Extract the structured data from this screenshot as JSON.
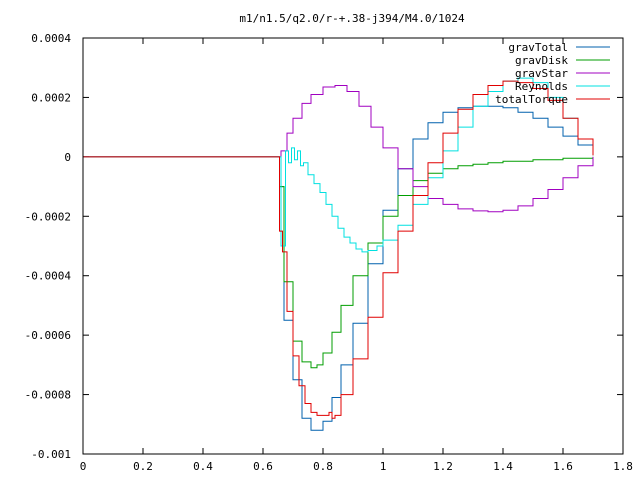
{
  "chart_data": {
    "type": "line",
    "title": "m1/n1.5/q2.0/r-+.38-j394/M4.0/1024",
    "xlabel": "",
    "ylabel": "",
    "xlim": [
      0,
      1.8
    ],
    "ylim": [
      -0.001,
      0.0004
    ],
    "x_ticks": [
      0,
      0.2,
      0.4,
      0.6,
      0.8,
      1,
      1.2,
      1.4,
      1.6,
      1.8
    ],
    "x_tick_labels": [
      "0",
      "0.2",
      "0.4",
      "0.6",
      "0.8",
      "1",
      "1.2",
      "1.4",
      "1.6",
      "1.8"
    ],
    "y_ticks": [
      -0.001,
      -0.0008,
      -0.0006,
      -0.0004,
      -0.0002,
      0,
      0.0002,
      0.0004
    ],
    "y_tick_labels": [
      "-0.001",
      "-0.0008",
      "-0.0006",
      "-0.0004",
      "-0.0002",
      "0",
      "0.0002",
      "0.0004"
    ],
    "grid": false,
    "legend_position": "top-right",
    "series": [
      {
        "name": "gravTotal",
        "color": "#0060ad",
        "x": [
          0,
          0.65,
          0.655,
          0.67,
          0.7,
          0.73,
          0.76,
          0.78,
          0.8,
          0.83,
          0.86,
          0.9,
          0.95,
          1.0,
          1.05,
          1.1,
          1.15,
          1.2,
          1.25,
          1.3,
          1.35,
          1.4,
          1.45,
          1.5,
          1.55,
          1.6,
          1.65,
          1.7
        ],
        "y": [
          0,
          0,
          -0.0001,
          -0.00055,
          -0.00075,
          -0.00088,
          -0.00092,
          -0.00092,
          -0.00089,
          -0.00081,
          -0.0007,
          -0.00056,
          -0.00036,
          -0.00018,
          -4e-05,
          6e-05,
          0.000115,
          0.00015,
          0.000165,
          0.00017,
          0.00017,
          0.000165,
          0.00015,
          0.00013,
          0.0001,
          7e-05,
          4e-05,
          5e-06
        ]
      },
      {
        "name": "gravDisk",
        "color": "#009e00",
        "x": [
          0,
          0.65,
          0.655,
          0.67,
          0.7,
          0.73,
          0.76,
          0.78,
          0.8,
          0.83,
          0.86,
          0.9,
          0.95,
          1.0,
          1.05,
          1.1,
          1.15,
          1.2,
          1.25,
          1.3,
          1.35,
          1.4,
          1.5,
          1.6,
          1.7
        ],
        "y": [
          0,
          0,
          -0.0001,
          -0.00042,
          -0.00062,
          -0.00069,
          -0.00071,
          -0.0007,
          -0.00066,
          -0.00059,
          -0.0005,
          -0.0004,
          -0.00029,
          -0.0002,
          -0.00013,
          -8e-05,
          -5.5e-05,
          -4e-05,
          -3e-05,
          -2.5e-05,
          -2e-05,
          -1.5e-05,
          -1e-05,
          -5e-06,
          0
        ]
      },
      {
        "name": "gravStar",
        "color": "#a000c0",
        "x": [
          0,
          0.65,
          0.66,
          0.68,
          0.7,
          0.73,
          0.76,
          0.8,
          0.84,
          0.88,
          0.92,
          0.96,
          1.0,
          1.05,
          1.1,
          1.15,
          1.2,
          1.25,
          1.3,
          1.35,
          1.4,
          1.45,
          1.5,
          1.55,
          1.6,
          1.65,
          1.7
        ],
        "y": [
          0,
          0,
          2e-05,
          8e-05,
          0.00013,
          0.00018,
          0.00021,
          0.000235,
          0.00024,
          0.00022,
          0.00017,
          0.0001,
          3e-05,
          -4e-05,
          -0.0001,
          -0.00014,
          -0.00016,
          -0.000175,
          -0.000182,
          -0.000185,
          -0.00018,
          -0.000165,
          -0.00014,
          -0.00011,
          -7e-05,
          -3e-05,
          0
        ]
      },
      {
        "name": "Reynolds",
        "color": "#00e0e0",
        "x": [
          0,
          0.65,
          0.66,
          0.675,
          0.685,
          0.695,
          0.705,
          0.715,
          0.725,
          0.735,
          0.75,
          0.77,
          0.79,
          0.81,
          0.83,
          0.85,
          0.87,
          0.89,
          0.91,
          0.93,
          0.95,
          0.98,
          1.0,
          1.05,
          1.1,
          1.15,
          1.2,
          1.25,
          1.3,
          1.35,
          1.4,
          1.45,
          1.5,
          1.55,
          1.6,
          1.65,
          1.7
        ],
        "y": [
          0,
          0,
          -0.0003,
          2e-05,
          -2e-05,
          3e-05,
          -1e-05,
          2e-05,
          -3e-05,
          -2e-05,
          -6e-05,
          -9e-05,
          -0.00012,
          -0.00016,
          -0.0002,
          -0.00024,
          -0.00027,
          -0.00029,
          -0.00031,
          -0.00032,
          -0.000315,
          -0.0003,
          -0.00028,
          -0.00023,
          -0.00016,
          -7e-05,
          2e-05,
          0.0001,
          0.00017,
          0.00022,
          0.000255,
          0.000265,
          0.00025,
          0.0002,
          0.00013,
          6e-05,
          5e-06
        ]
      },
      {
        "name": "totalTorque",
        "color": "#e00000",
        "x": [
          0,
          0.65,
          0.655,
          0.665,
          0.68,
          0.7,
          0.72,
          0.74,
          0.76,
          0.78,
          0.8,
          0.82,
          0.83,
          0.84,
          0.86,
          0.9,
          0.95,
          1.0,
          1.05,
          1.1,
          1.15,
          1.2,
          1.25,
          1.3,
          1.35,
          1.4,
          1.45,
          1.5,
          1.55,
          1.6,
          1.65,
          1.7
        ],
        "y": [
          0,
          0,
          -0.00025,
          -0.00032,
          -0.00052,
          -0.00067,
          -0.00077,
          -0.00083,
          -0.00086,
          -0.00087,
          -0.00087,
          -0.00086,
          -0.00088,
          -0.00087,
          -0.0008,
          -0.00068,
          -0.00054,
          -0.00039,
          -0.00025,
          -0.00013,
          -2e-05,
          8e-05,
          0.00016,
          0.00021,
          0.00024,
          0.000255,
          0.00025,
          0.00023,
          0.00019,
          0.00013,
          6e-05,
          5e-06
        ]
      }
    ]
  }
}
